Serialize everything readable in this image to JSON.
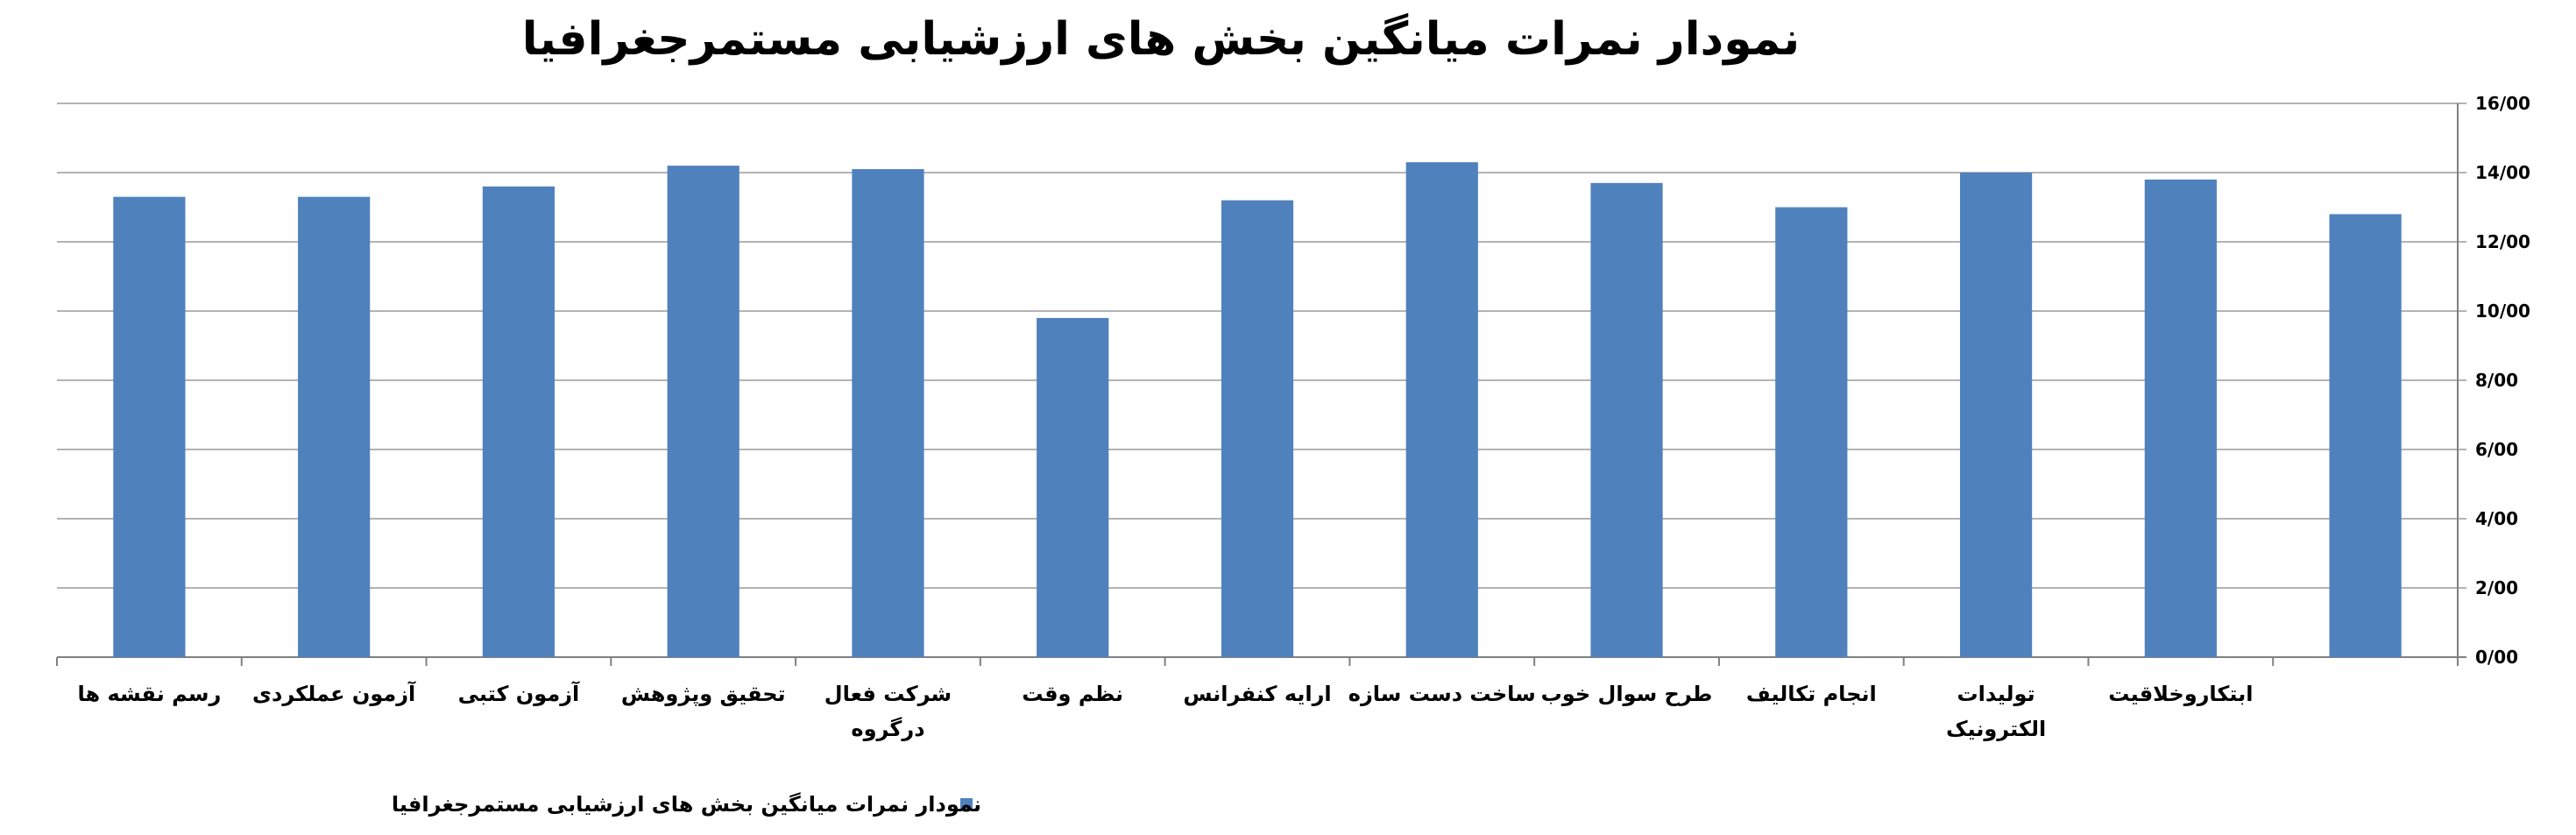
{
  "chart_data": {
    "type": "bar",
    "title": "نمودار نمرات میانگین  بخش های ارزشیابی مستمرجغرافیا",
    "xlabel": "",
    "ylabel": "",
    "ylim": [
      0,
      16
    ],
    "y_ticks": [
      "0/00",
      "2/00",
      "4/00",
      "6/00",
      "8/00",
      "10/00",
      "12/00",
      "14/00",
      "16/00"
    ],
    "y_tick_values": [
      0,
      2,
      4,
      6,
      8,
      10,
      12,
      14,
      16
    ],
    "y_axis_side": "right",
    "grid": true,
    "legend_position": "bottom",
    "categories": [
      [
        "رسم نقشه ها"
      ],
      [
        "آزمون عملکردی"
      ],
      [
        "آزمون کتبی"
      ],
      [
        "تحقیق وپژوهش"
      ],
      [
        "شرکت فعال",
        "درگروه"
      ],
      [
        "نظم وقت"
      ],
      [
        "ارایه کنفرانس"
      ],
      [
        "ساخت دست سازه"
      ],
      [
        "طرح سوال خوب"
      ],
      [
        "انجام تکالیف"
      ],
      [
        "تولیدات",
        "الکترونیک"
      ],
      [
        "ابتکاروخلاقیت"
      ],
      [
        ""
      ]
    ],
    "series": [
      {
        "name": "نمودار نمرات میانگین  بخش های ارزشیابی مستمرجغرافیا",
        "color": "#4f81bd",
        "values": [
          13.3,
          13.3,
          13.6,
          14.2,
          14.1,
          9.8,
          13.2,
          14.3,
          13.7,
          13.0,
          14.0,
          13.8,
          12.8
        ]
      }
    ]
  }
}
